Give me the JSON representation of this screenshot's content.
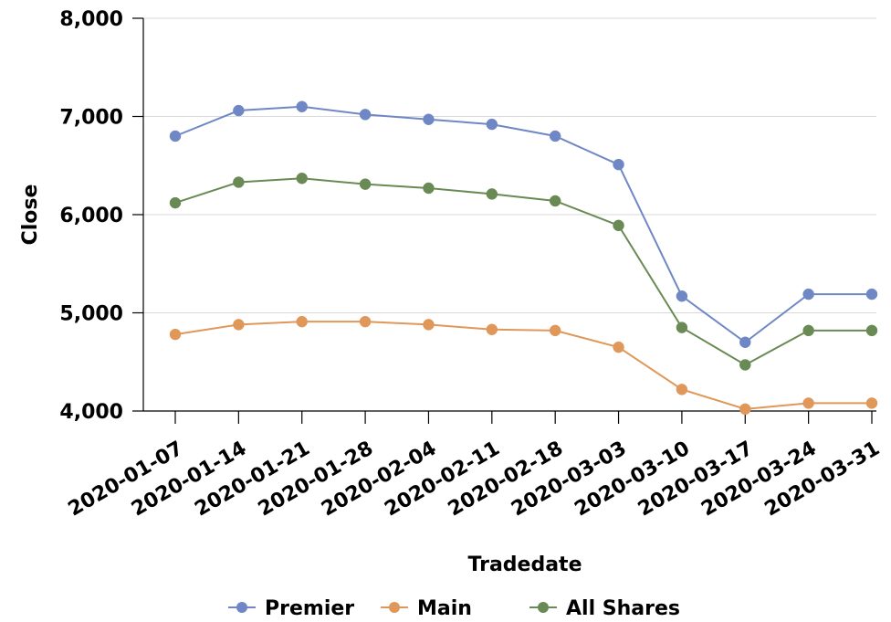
{
  "chart_data": {
    "type": "line",
    "title": "",
    "xlabel": "Tradedate",
    "ylabel": "Close",
    "categories": [
      "2020-01-07",
      "2020-01-14",
      "2020-01-21",
      "2020-01-28",
      "2020-02-04",
      "2020-02-11",
      "2020-02-18",
      "2020-03-03",
      "2020-03-10",
      "2020-03-17",
      "2020-03-24",
      "2020-03-31"
    ],
    "y_ticks": [
      "4,000",
      "5,000",
      "6,000",
      "7,000",
      "8,000"
    ],
    "y_tick_values": [
      4000,
      5000,
      6000,
      7000,
      8000
    ],
    "ylim": [
      4000,
      8000
    ],
    "grid": true,
    "legend_position": "bottom",
    "series": [
      {
        "name": "Premier",
        "color": "#6f88c5",
        "values": [
          6800,
          7060,
          7100,
          7020,
          6970,
          6920,
          6800,
          6510,
          5170,
          4700,
          5190,
          5190
        ]
      },
      {
        "name": "Main",
        "color": "#e0975a",
        "values": [
          4780,
          4880,
          4910,
          4910,
          4880,
          4830,
          4820,
          4650,
          4220,
          4020,
          4080,
          4080
        ]
      },
      {
        "name": "All Shares",
        "color": "#6a8a55",
        "values": [
          6120,
          6330,
          6370,
          6310,
          6270,
          6210,
          6140,
          5890,
          4850,
          4470,
          4820,
          4820
        ]
      }
    ]
  }
}
